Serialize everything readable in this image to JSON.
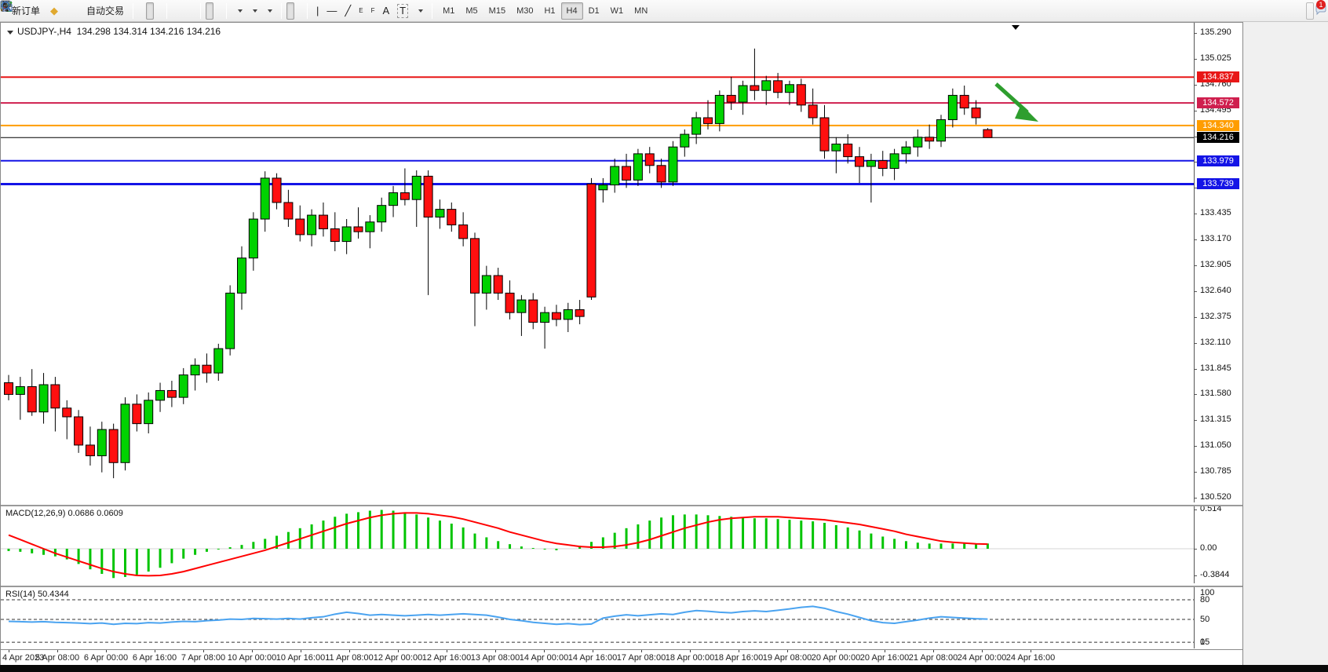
{
  "toolbar": {
    "new_order_label": "新订单",
    "auto_trading_label": "自动交易",
    "timeframes": [
      "M1",
      "M5",
      "M15",
      "M30",
      "H1",
      "H4",
      "D1",
      "W1",
      "MN"
    ],
    "active_timeframe": "H4",
    "annotation_text_tool": "A",
    "label_tool": "T",
    "channel_tool_tag": "E",
    "fibo_tool_tag": "F",
    "notification_count": "1"
  },
  "chart": {
    "title_symbol": "USDJPY-,H4",
    "title_ohlc": "134.298 134.314 134.216 134.216"
  },
  "indicators": {
    "macd_label": "MACD(12,26,9) 0.0686 0.0609",
    "rsi_label": "RSI(14) 50.4344"
  },
  "colors": {
    "candle_up": "#00d200",
    "candle_down": "#ff0f0f",
    "candle_outline": "#000000",
    "macd_hist": "#00c400",
    "macd_signal": "#ff0000",
    "rsi_line": "#4aa3f0",
    "arrow_green": "#2e9e2e"
  },
  "chart_data": {
    "type": "candlestick",
    "symbol": "USDJPY-",
    "period": "H4",
    "ylim": [
      130.52,
      135.29
    ],
    "price_axis_ticks": [
      "135.290",
      "135.025",
      "134.760",
      "134.495",
      "134.230",
      "133.965",
      "133.700",
      "133.435",
      "133.170",
      "132.905",
      "132.640",
      "132.375",
      "132.110",
      "131.845",
      "131.580",
      "131.315",
      "131.050",
      "130.785",
      "130.520"
    ],
    "time_axis_labels": [
      "4 Apr 2023",
      "5 Apr 08:00",
      "6 Apr 00:00",
      "6 Apr 16:00",
      "7 Apr 08:00",
      "10 Apr 00:00",
      "10 Apr 16:00",
      "11 Apr 08:00",
      "12 Apr 00:00",
      "12 Apr 16:00",
      "13 Apr 08:00",
      "14 Apr 00:00",
      "14 Apr 16:00",
      "17 Apr 08:00",
      "18 Apr 00:00",
      "18 Apr 16:00",
      "19 Apr 08:00",
      "20 Apr 00:00",
      "20 Apr 16:00",
      "21 Apr 08:00",
      "24 Apr 00:00",
      "24 Apr 16:00"
    ],
    "candles_ohlc": [
      [
        131.7,
        131.78,
        131.52,
        131.58
      ],
      [
        131.58,
        131.76,
        131.32,
        131.66
      ],
      [
        131.66,
        131.84,
        131.36,
        131.4
      ],
      [
        131.4,
        131.8,
        131.28,
        131.68
      ],
      [
        131.68,
        131.76,
        131.2,
        131.44
      ],
      [
        131.44,
        131.52,
        131.12,
        131.35
      ],
      [
        131.35,
        131.42,
        130.98,
        131.06
      ],
      [
        131.06,
        131.25,
        130.85,
        130.95
      ],
      [
        130.95,
        131.3,
        130.78,
        131.22
      ],
      [
        131.22,
        131.28,
        130.72,
        130.88
      ],
      [
        130.88,
        131.55,
        130.8,
        131.48
      ],
      [
        131.48,
        131.58,
        131.2,
        131.28
      ],
      [
        131.28,
        131.6,
        131.18,
        131.52
      ],
      [
        131.52,
        131.7,
        131.4,
        131.62
      ],
      [
        131.62,
        131.72,
        131.45,
        131.55
      ],
      [
        131.55,
        131.85,
        131.48,
        131.78
      ],
      [
        131.78,
        131.95,
        131.62,
        131.88
      ],
      [
        131.88,
        132.0,
        131.7,
        131.8
      ],
      [
        131.8,
        132.1,
        131.72,
        132.05
      ],
      [
        132.05,
        132.7,
        131.98,
        132.62
      ],
      [
        132.62,
        133.1,
        132.45,
        132.98
      ],
      [
        132.98,
        133.45,
        132.85,
        133.38
      ],
      [
        133.38,
        133.87,
        133.25,
        133.8
      ],
      [
        133.8,
        133.85,
        133.48,
        133.55
      ],
      [
        133.55,
        133.68,
        133.3,
        133.38
      ],
      [
        133.38,
        133.52,
        133.15,
        133.22
      ],
      [
        133.22,
        133.48,
        133.1,
        133.42
      ],
      [
        133.42,
        133.55,
        133.2,
        133.28
      ],
      [
        133.28,
        133.45,
        133.05,
        133.15
      ],
      [
        133.15,
        133.38,
        133.02,
        133.3
      ],
      [
        133.3,
        133.5,
        133.18,
        133.25
      ],
      [
        133.25,
        133.42,
        133.08,
        133.35
      ],
      [
        133.35,
        133.6,
        133.25,
        133.52
      ],
      [
        133.52,
        133.72,
        133.4,
        133.65
      ],
      [
        133.65,
        133.9,
        133.52,
        133.58
      ],
      [
        133.58,
        133.88,
        133.3,
        133.82
      ],
      [
        133.82,
        133.88,
        132.6,
        133.4
      ],
      [
        133.4,
        133.58,
        133.28,
        133.48
      ],
      [
        133.48,
        133.55,
        133.25,
        133.32
      ],
      [
        133.32,
        133.45,
        133.1,
        133.18
      ],
      [
        133.18,
        133.24,
        132.28,
        132.62
      ],
      [
        132.62,
        132.9,
        132.45,
        132.8
      ],
      [
        132.8,
        132.88,
        132.55,
        132.62
      ],
      [
        132.62,
        132.75,
        132.35,
        132.42
      ],
      [
        132.42,
        132.6,
        132.18,
        132.55
      ],
      [
        132.55,
        132.62,
        132.25,
        132.32
      ],
      [
        132.32,
        132.48,
        132.05,
        132.42
      ],
      [
        132.42,
        132.5,
        132.28,
        132.35
      ],
      [
        132.35,
        132.52,
        132.22,
        132.45
      ],
      [
        132.45,
        132.55,
        132.3,
        132.38
      ],
      [
        133.74,
        133.8,
        132.55,
        132.58
      ],
      [
        133.68,
        133.8,
        133.55,
        133.73
      ],
      [
        133.73,
        134.0,
        133.65,
        133.92
      ],
      [
        133.92,
        134.05,
        133.7,
        133.78
      ],
      [
        133.78,
        134.1,
        133.72,
        134.05
      ],
      [
        134.05,
        134.12,
        133.85,
        133.93
      ],
      [
        133.93,
        134.0,
        133.7,
        133.76
      ],
      [
        133.76,
        134.18,
        133.72,
        134.12
      ],
      [
        134.12,
        134.3,
        134.02,
        134.25
      ],
      [
        134.25,
        134.48,
        134.15,
        134.42
      ],
      [
        134.42,
        134.6,
        134.3,
        134.36
      ],
      [
        134.36,
        134.7,
        134.28,
        134.65
      ],
      [
        134.65,
        134.84,
        134.5,
        134.58
      ],
      [
        134.58,
        134.8,
        134.45,
        134.75
      ],
      [
        134.75,
        135.13,
        134.6,
        134.7
      ],
      [
        134.7,
        134.85,
        134.55,
        134.8
      ],
      [
        134.8,
        134.88,
        134.62,
        134.68
      ],
      [
        134.68,
        134.8,
        134.55,
        134.76
      ],
      [
        134.76,
        134.82,
        134.48,
        134.55
      ],
      [
        134.55,
        134.72,
        134.35,
        134.42
      ],
      [
        134.42,
        134.55,
        134.0,
        134.08
      ],
      [
        134.08,
        134.22,
        133.85,
        134.15
      ],
      [
        134.15,
        134.25,
        133.95,
        134.02
      ],
      [
        134.02,
        134.12,
        133.75,
        133.92
      ],
      [
        133.92,
        134.05,
        133.55,
        133.98
      ],
      [
        133.98,
        134.08,
        133.82,
        133.9
      ],
      [
        133.9,
        134.1,
        133.78,
        134.05
      ],
      [
        134.05,
        134.18,
        133.95,
        134.12
      ],
      [
        134.12,
        134.3,
        134.02,
        134.22
      ],
      [
        134.22,
        134.35,
        134.1,
        134.18
      ],
      [
        134.18,
        134.45,
        134.12,
        134.4
      ],
      [
        134.4,
        134.72,
        134.32,
        134.65
      ],
      [
        134.65,
        134.75,
        134.45,
        134.52
      ],
      [
        134.52,
        134.6,
        134.35,
        134.42
      ],
      [
        134.298,
        134.314,
        134.216,
        134.216
      ]
    ],
    "horizontal_lines": [
      {
        "price": 134.837,
        "label": "134.837",
        "color": "#e81717",
        "width": 2
      },
      {
        "price": 134.572,
        "label": "134.572",
        "color": "#cf1f4e",
        "width": 2
      },
      {
        "price": 134.34,
        "label": "134.340",
        "color": "#ff9d00",
        "width": 2
      },
      {
        "price": 134.216,
        "label": "134.216",
        "color": "#000000",
        "width": 1
      },
      {
        "price": 133.979,
        "label": "133.979",
        "color": "#1414e6",
        "width": 2
      },
      {
        "price": 133.739,
        "label": "133.739",
        "color": "#1414e6",
        "width": 3
      }
    ],
    "macd": {
      "params": "12,26,9",
      "current_hist": 0.0686,
      "current_signal": 0.0609,
      "axis_ticks": [
        "0.514",
        "0.00",
        "-0.3844"
      ],
      "axis_values": [
        0.514,
        0.0,
        -0.3844
      ],
      "histogram": [
        -0.03,
        -0.04,
        -0.06,
        -0.08,
        -0.1,
        -0.14,
        -0.2,
        -0.27,
        -0.33,
        -0.3844,
        -0.37,
        -0.34,
        -0.3,
        -0.25,
        -0.19,
        -0.13,
        -0.08,
        -0.04,
        -0.01,
        0.02,
        0.05,
        0.09,
        0.13,
        0.17,
        0.22,
        0.27,
        0.32,
        0.37,
        0.42,
        0.46,
        0.48,
        0.5,
        0.51,
        0.5,
        0.48,
        0.45,
        0.41,
        0.37,
        0.33,
        0.28,
        0.2,
        0.15,
        0.1,
        0.06,
        0.03,
        0.01,
        -0.01,
        -0.02,
        0.0,
        0.04,
        0.09,
        0.15,
        0.21,
        0.27,
        0.32,
        0.37,
        0.41,
        0.44,
        0.45,
        0.45,
        0.44,
        0.43,
        0.42,
        0.41,
        0.4,
        0.4,
        0.39,
        0.38,
        0.37,
        0.36,
        0.34,
        0.31,
        0.28,
        0.24,
        0.2,
        0.16,
        0.13,
        0.1,
        0.08,
        0.068,
        0.068,
        0.069,
        0.069,
        0.069,
        0.0686
      ],
      "signal": [
        0.18,
        0.12,
        0.06,
        0.0,
        -0.06,
        -0.11,
        -0.16,
        -0.21,
        -0.26,
        -0.3,
        -0.33,
        -0.35,
        -0.355,
        -0.35,
        -0.33,
        -0.3,
        -0.26,
        -0.22,
        -0.18,
        -0.14,
        -0.1,
        -0.06,
        -0.02,
        0.03,
        0.08,
        0.13,
        0.18,
        0.23,
        0.28,
        0.33,
        0.37,
        0.41,
        0.44,
        0.46,
        0.47,
        0.47,
        0.46,
        0.44,
        0.42,
        0.39,
        0.35,
        0.31,
        0.27,
        0.22,
        0.18,
        0.14,
        0.1,
        0.07,
        0.05,
        0.03,
        0.02,
        0.02,
        0.03,
        0.05,
        0.08,
        0.12,
        0.17,
        0.22,
        0.27,
        0.31,
        0.35,
        0.38,
        0.4,
        0.41,
        0.42,
        0.42,
        0.42,
        0.41,
        0.4,
        0.39,
        0.38,
        0.36,
        0.34,
        0.32,
        0.29,
        0.26,
        0.23,
        0.19,
        0.16,
        0.13,
        0.1,
        0.085,
        0.075,
        0.065,
        0.0609
      ]
    },
    "rsi": {
      "params": "14",
      "current": 50.4344,
      "axis_ticks": [
        "100",
        "80",
        "50",
        "15",
        "0"
      ],
      "axis_values": [
        100,
        80,
        50,
        15,
        0
      ],
      "levels_dashed": [
        80,
        50,
        15
      ],
      "values": [
        47,
        46.5,
        46,
        46.5,
        45.5,
        45,
        44.5,
        43.5,
        44.5,
        42.5,
        44,
        43.5,
        45,
        44.5,
        46,
        47,
        46.5,
        48,
        49,
        50.5,
        50,
        51.5,
        51,
        50.5,
        51.5,
        50.5,
        52.5,
        54,
        58,
        61,
        59,
        56.5,
        57.5,
        56.5,
        55.5,
        56.5,
        57.5,
        56.5,
        57.5,
        58.5,
        57.5,
        56.5,
        53.5,
        50,
        48,
        45.5,
        44,
        42.5,
        43.5,
        42,
        43,
        52,
        55,
        57,
        55.5,
        57,
        58.5,
        57.5,
        61,
        63.5,
        62.5,
        61,
        60,
        62,
        63,
        62,
        64,
        66,
        68.5,
        70,
        67,
        62,
        58,
        53,
        48,
        45,
        44,
        46.5,
        49,
        52,
        54,
        53,
        52,
        51,
        50.4344
      ]
    },
    "annotations": [
      {
        "type": "arrow",
        "direction": "down-right",
        "color": "#2e9e2e",
        "from_price": 134.72,
        "to_price": 134.36
      }
    ]
  }
}
